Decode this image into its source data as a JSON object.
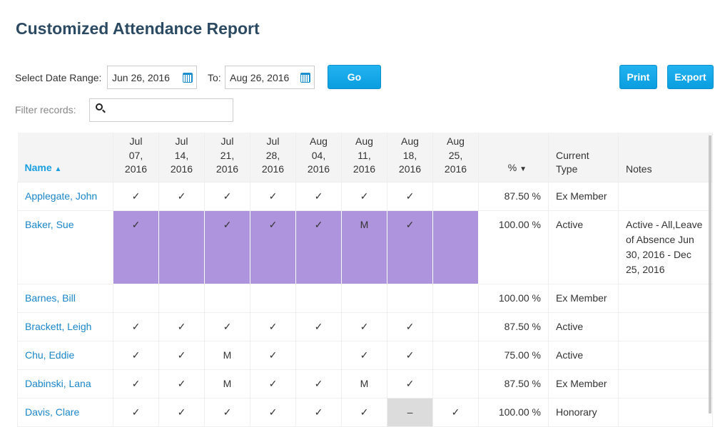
{
  "page": {
    "title": "Customized Attendance Report"
  },
  "controls": {
    "date_range_label": "Select Date Range:",
    "from": "Jun 26, 2016",
    "to_label": "To:",
    "to": "Aug 26, 2016",
    "go": "Go",
    "print": "Print",
    "export": "Export",
    "filter_label": "Filter records:",
    "filter_value": ""
  },
  "table": {
    "headers": {
      "name": "Name",
      "percent": "%",
      "type": [
        "Current",
        "Type"
      ],
      "notes": "Notes"
    },
    "dates": [
      [
        "Jul",
        "07,",
        "2016"
      ],
      [
        "Jul",
        "14,",
        "2016"
      ],
      [
        "Jul",
        "21,",
        "2016"
      ],
      [
        "Jul",
        "28,",
        "2016"
      ],
      [
        "Aug",
        "04,",
        "2016"
      ],
      [
        "Aug",
        "11,",
        "2016"
      ],
      [
        "Aug",
        "18,",
        "2016"
      ],
      [
        "Aug",
        "25,",
        "2016"
      ]
    ],
    "rows": [
      {
        "name": "Applegate, John",
        "cells": [
          "✓",
          "✓",
          "✓",
          "✓",
          "✓",
          "✓",
          "✓",
          ""
        ],
        "percent": "87.50 %",
        "type": "Ex Member",
        "notes": ""
      },
      {
        "name": "Baker, Sue",
        "cells": [
          "✓",
          "",
          "✓",
          "✓",
          "✓",
          "M",
          "✓",
          ""
        ],
        "highlight": "leave",
        "percent": "100.00 %",
        "type": "Active",
        "notes": "Active - All,Leave of Absence Jun 30, 2016 - Dec 25, 2016"
      },
      {
        "name": "Barnes, Bill",
        "cells": [
          "",
          "",
          "",
          "",
          "",
          "",
          "",
          ""
        ],
        "percent": "100.00 %",
        "type": "Ex Member",
        "notes": ""
      },
      {
        "name": "Brackett, Leigh",
        "cells": [
          "✓",
          "✓",
          "✓",
          "✓",
          "✓",
          "✓",
          "✓",
          ""
        ],
        "percent": "87.50 %",
        "type": "Active",
        "notes": ""
      },
      {
        "name": "Chu, Eddie",
        "cells": [
          "✓",
          "✓",
          "M",
          "✓",
          "",
          "✓",
          "✓",
          ""
        ],
        "percent": "75.00 %",
        "type": "Active",
        "notes": ""
      },
      {
        "name": "Dabinski, Lana",
        "cells": [
          "✓",
          "✓",
          "M",
          "✓",
          "✓",
          "M",
          "✓",
          ""
        ],
        "percent": "87.50 %",
        "type": "Ex Member",
        "notes": ""
      },
      {
        "name": "Davis, Clare",
        "cells": [
          "✓",
          "✓",
          "✓",
          "✓",
          "✓",
          "✓",
          "–",
          "✓"
        ],
        "gray_cell": 6,
        "percent": "100.00 %",
        "type": "Honorary",
        "notes": ""
      }
    ]
  },
  "colors": {
    "accent": "#1a9fe0",
    "leave": "#ae94dc",
    "excused": "#dcdcdc",
    "link": "#1a86c8"
  }
}
